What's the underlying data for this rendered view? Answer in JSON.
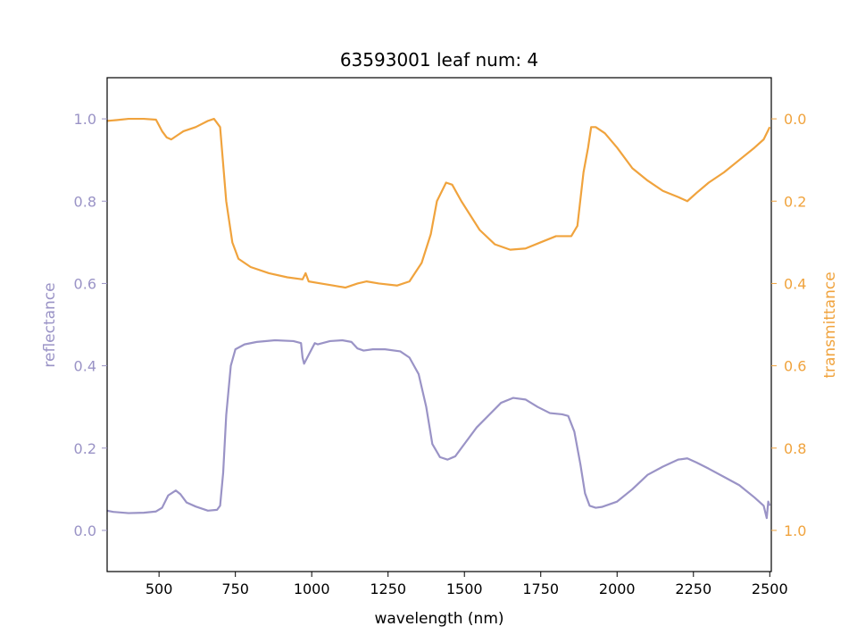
{
  "chart_data": {
    "type": "line",
    "title": "63593001 leaf num: 4",
    "xlabel": "wavelength (nm)",
    "ylabel_left": "reflectance",
    "ylabel_right": "transmittance",
    "xlim": [
      330,
      2505
    ],
    "ylim_left": [
      -0.1,
      1.1
    ],
    "ylim_right": [
      1.1,
      -0.1
    ],
    "x_ticks": [
      500,
      750,
      1000,
      1250,
      1500,
      1750,
      2000,
      2250,
      2500
    ],
    "y_ticks_left": [
      "0.0",
      "0.2",
      "0.4",
      "0.6",
      "0.8",
      "1.0"
    ],
    "y_ticks_right": [
      "0.0",
      "0.2",
      "0.4",
      "0.6",
      "0.8",
      "1.0"
    ],
    "grid": false,
    "colors": {
      "reflectance": "#9a93c6",
      "transmittance": "#f0a33d"
    },
    "series": [
      {
        "axis": "left",
        "color": "#9a93c6",
        "points": [
          [
            330,
            0.048
          ],
          [
            350,
            0.045
          ],
          [
            400,
            0.042
          ],
          [
            450,
            0.043
          ],
          [
            490,
            0.046
          ],
          [
            510,
            0.055
          ],
          [
            530,
            0.085
          ],
          [
            555,
            0.097
          ],
          [
            570,
            0.088
          ],
          [
            590,
            0.068
          ],
          [
            620,
            0.058
          ],
          [
            660,
            0.048
          ],
          [
            690,
            0.05
          ],
          [
            700,
            0.06
          ],
          [
            710,
            0.14
          ],
          [
            720,
            0.28
          ],
          [
            735,
            0.4
          ],
          [
            750,
            0.44
          ],
          [
            780,
            0.452
          ],
          [
            820,
            0.458
          ],
          [
            880,
            0.462
          ],
          [
            940,
            0.46
          ],
          [
            965,
            0.455
          ],
          [
            970,
            0.42
          ],
          [
            975,
            0.405
          ],
          [
            1010,
            0.455
          ],
          [
            1020,
            0.452
          ],
          [
            1060,
            0.46
          ],
          [
            1100,
            0.462
          ],
          [
            1130,
            0.458
          ],
          [
            1150,
            0.442
          ],
          [
            1170,
            0.437
          ],
          [
            1200,
            0.44
          ],
          [
            1240,
            0.44
          ],
          [
            1290,
            0.435
          ],
          [
            1320,
            0.42
          ],
          [
            1350,
            0.38
          ],
          [
            1375,
            0.3
          ],
          [
            1395,
            0.21
          ],
          [
            1420,
            0.178
          ],
          [
            1445,
            0.172
          ],
          [
            1470,
            0.18
          ],
          [
            1500,
            0.21
          ],
          [
            1540,
            0.25
          ],
          [
            1580,
            0.28
          ],
          [
            1620,
            0.31
          ],
          [
            1660,
            0.322
          ],
          [
            1700,
            0.318
          ],
          [
            1740,
            0.3
          ],
          [
            1780,
            0.285
          ],
          [
            1820,
            0.282
          ],
          [
            1840,
            0.278
          ],
          [
            1860,
            0.24
          ],
          [
            1880,
            0.16
          ],
          [
            1895,
            0.09
          ],
          [
            1910,
            0.06
          ],
          [
            1930,
            0.055
          ],
          [
            1950,
            0.057
          ],
          [
            2000,
            0.07
          ],
          [
            2050,
            0.1
          ],
          [
            2100,
            0.135
          ],
          [
            2150,
            0.155
          ],
          [
            2200,
            0.172
          ],
          [
            2230,
            0.175
          ],
          [
            2260,
            0.165
          ],
          [
            2300,
            0.15
          ],
          [
            2350,
            0.13
          ],
          [
            2400,
            0.11
          ],
          [
            2450,
            0.08
          ],
          [
            2480,
            0.06
          ],
          [
            2490,
            0.03
          ],
          [
            2495,
            0.07
          ],
          [
            2500,
            0.06
          ]
        ]
      },
      {
        "axis": "right",
        "color": "#f0a33d",
        "points": [
          [
            330,
            0.005
          ],
          [
            360,
            0.003
          ],
          [
            400,
            0.0
          ],
          [
            450,
            0.0
          ],
          [
            490,
            0.002
          ],
          [
            510,
            0.03
          ],
          [
            525,
            0.045
          ],
          [
            540,
            0.05
          ],
          [
            560,
            0.04
          ],
          [
            580,
            0.03
          ],
          [
            620,
            0.02
          ],
          [
            660,
            0.005
          ],
          [
            680,
            0.0
          ],
          [
            700,
            0.02
          ],
          [
            720,
            0.2
          ],
          [
            740,
            0.3
          ],
          [
            760,
            0.34
          ],
          [
            800,
            0.36
          ],
          [
            860,
            0.375
          ],
          [
            920,
            0.385
          ],
          [
            970,
            0.39
          ],
          [
            980,
            0.375
          ],
          [
            990,
            0.395
          ],
          [
            1030,
            0.4
          ],
          [
            1070,
            0.405
          ],
          [
            1110,
            0.41
          ],
          [
            1150,
            0.4
          ],
          [
            1180,
            0.395
          ],
          [
            1220,
            0.4
          ],
          [
            1280,
            0.405
          ],
          [
            1320,
            0.395
          ],
          [
            1360,
            0.35
          ],
          [
            1390,
            0.28
          ],
          [
            1410,
            0.2
          ],
          [
            1440,
            0.155
          ],
          [
            1460,
            0.16
          ],
          [
            1490,
            0.2
          ],
          [
            1550,
            0.27
          ],
          [
            1600,
            0.305
          ],
          [
            1650,
            0.318
          ],
          [
            1700,
            0.315
          ],
          [
            1750,
            0.3
          ],
          [
            1800,
            0.285
          ],
          [
            1850,
            0.285
          ],
          [
            1870,
            0.26
          ],
          [
            1890,
            0.13
          ],
          [
            1905,
            0.07
          ],
          [
            1915,
            0.02
          ],
          [
            1930,
            0.02
          ],
          [
            1960,
            0.035
          ],
          [
            2000,
            0.07
          ],
          [
            2050,
            0.12
          ],
          [
            2100,
            0.15
          ],
          [
            2150,
            0.175
          ],
          [
            2200,
            0.19
          ],
          [
            2230,
            0.2
          ],
          [
            2260,
            0.18
          ],
          [
            2300,
            0.155
          ],
          [
            2350,
            0.13
          ],
          [
            2400,
            0.1
          ],
          [
            2450,
            0.07
          ],
          [
            2480,
            0.05
          ],
          [
            2500,
            0.02
          ]
        ]
      }
    ]
  }
}
